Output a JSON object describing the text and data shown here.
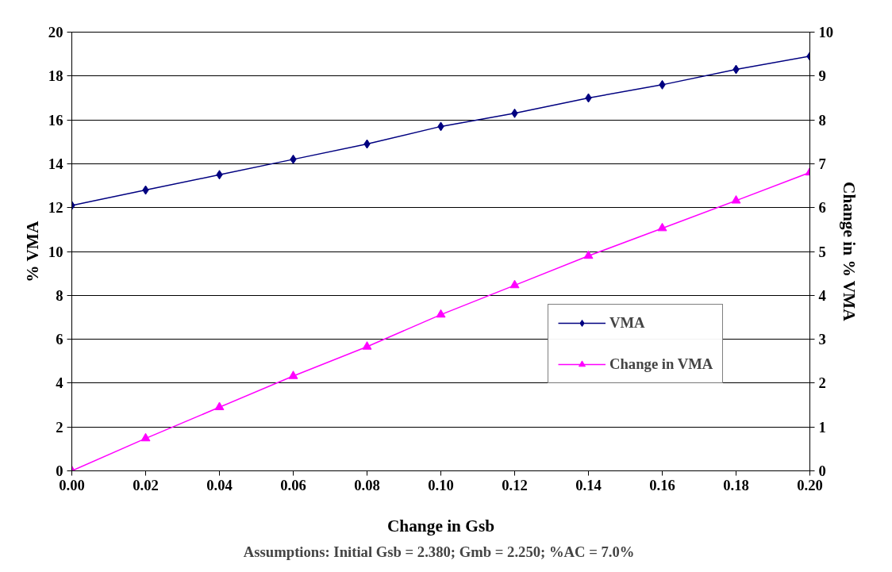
{
  "chart_data": {
    "type": "line",
    "xlabel": "Change in Gsb",
    "ylabel": "% VMA",
    "y2label": "Change in % VMA",
    "annotations": [
      "Assumptions:  Initial Gsb = 2.380; Gmb = 2.250; %AC = 7.0%"
    ],
    "x": [
      0,
      0.02,
      0.04,
      0.06,
      0.08,
      0.1,
      0.12,
      0.14,
      0.16,
      0.18,
      0.2
    ],
    "series": [
      {
        "name": "VMA",
        "color": "#000080",
        "marker": "diamond",
        "values": [
          12.1,
          12.8,
          13.5,
          14.2,
          14.9,
          15.7,
          16.3,
          17.0,
          17.6,
          18.3,
          18.9
        ]
      },
      {
        "name": "Change in VMA",
        "color": "#ff00ff",
        "marker": "triangle",
        "axis": "y2",
        "values": [
          0,
          0.74,
          1.45,
          2.16,
          2.83,
          3.56,
          4.23,
          4.9,
          5.53,
          6.16,
          6.8
        ]
      }
    ],
    "xlim": [
      0,
      0.2
    ],
    "xticks": [
      {
        "value": 0,
        "label": "0.00"
      },
      0.02,
      0.04,
      0.06,
      0.08,
      {
        "value": 0.1,
        "label": "0.10"
      },
      0.12,
      0.14,
      0.16,
      0.18,
      {
        "value": 0.2,
        "label": "0.20"
      }
    ],
    "ylim": [
      0,
      20
    ],
    "yticks": [
      0,
      2,
      4,
      6,
      8,
      10,
      12,
      14,
      16,
      18,
      20
    ],
    "y2lim": [
      0,
      10
    ],
    "y2ticks": [
      0,
      1,
      2,
      3,
      4,
      5,
      6,
      7,
      8,
      9,
      10
    ],
    "grid": "y",
    "legend": "right",
    "line_style": "solid"
  }
}
